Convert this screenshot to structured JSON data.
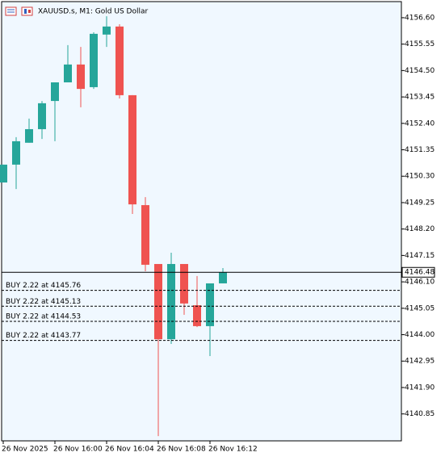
{
  "chart_data": {
    "type": "candlestick",
    "title": "XAUUSD.s, M1:  Gold US Dollar",
    "categories": [
      "26 Nov 2025",
      null,
      null,
      null,
      "26 Nov 16:00",
      null,
      null,
      null,
      "26 Nov 16:04",
      null,
      null,
      null,
      "26 Nov 16:08",
      null,
      null,
      null,
      "26 Nov 16:12",
      null
    ],
    "open": [
      4150.05,
      4150.76,
      4151.63,
      4152.17,
      4153.29,
      4154.03,
      4154.74,
      4153.84,
      4155.93,
      4156.25,
      4153.52,
      4149.15,
      4146.81,
      4143.82,
      4146.81,
      4145.17,
      4144.34,
      4146.04
    ],
    "high": [
      4150.76,
      4151.85,
      4152.59,
      4153.29,
      4154.03,
      4155.51,
      4155.44,
      4156.02,
      4156.66,
      4156.34,
      4153.52,
      4149.47,
      4146.81,
      4147.26,
      4146.81,
      4146.33,
      4146.04,
      4146.65
    ],
    "low": [
      4150.05,
      4149.79,
      4151.63,
      4151.78,
      4151.69,
      4154.03,
      4153.04,
      4153.77,
      4155.44,
      4153.39,
      4148.8,
      4146.52,
      4139.97,
      4143.63,
      4144.79,
      4144.3,
      4143.15,
      4146.04
    ],
    "close": [
      4150.76,
      4151.69,
      4152.17,
      4153.2,
      4154.03,
      4154.74,
      4153.77,
      4155.96,
      4156.25,
      4153.52,
      4149.18,
      4146.78,
      4143.82,
      4146.81,
      4145.24,
      4144.34,
      4146.04,
      4146.48
    ],
    "up_color": "#26a69a",
    "down_color": "#ef5350",
    "ylim": [
      4139.78,
      4157.24
    ],
    "yticks": [
      {
        "value": 4156.6,
        "label": "4156.60"
      },
      {
        "value": 4155.55,
        "label": "4155.55"
      },
      {
        "value": 4154.5,
        "label": "4154.50"
      },
      {
        "value": 4153.45,
        "label": "4153.45"
      },
      {
        "value": 4152.4,
        "label": "4152.40"
      },
      {
        "value": 4151.35,
        "label": "4151.35"
      },
      {
        "value": 4150.3,
        "label": "4150.30"
      },
      {
        "value": 4149.25,
        "label": "4149.25"
      },
      {
        "value": 4148.2,
        "label": "4148.20"
      },
      {
        "value": 4147.15,
        "label": "4147.15"
      },
      {
        "value": 4146.1,
        "label": "4146.10"
      },
      {
        "value": 4145.05,
        "label": "4145.05"
      },
      {
        "value": 4144.0,
        "label": "4144.00"
      },
      {
        "value": 4142.95,
        "label": "4142.95"
      },
      {
        "value": 4141.9,
        "label": "4141.90"
      },
      {
        "value": 4140.85,
        "label": "4140.85"
      }
    ],
    "current_price": {
      "value": 4146.48,
      "label": "4146.48"
    },
    "orders": [
      {
        "label": "BUY 2.22 at 4145.76",
        "price": 4145.76
      },
      {
        "label": "BUY 2.22 at 4145.13",
        "price": 4145.13
      },
      {
        "label": "BUY 2.22 at 4144.53",
        "price": 4144.53
      },
      {
        "label": "BUY 2.22 at 4143.77",
        "price": 4143.77
      }
    ]
  }
}
